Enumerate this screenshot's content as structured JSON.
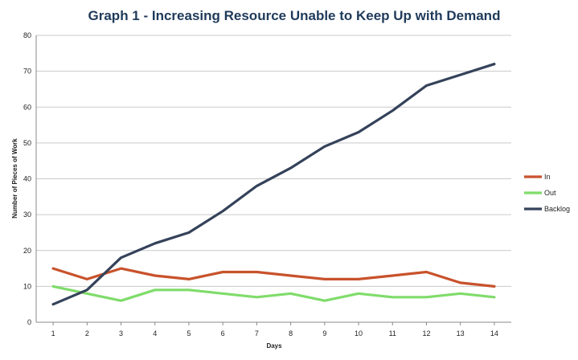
{
  "chart_data": {
    "type": "line",
    "title": "Graph 1 - Increasing Resource Unable to Keep Up with Demand",
    "xlabel": "Days",
    "ylabel": "Number of Pieces of Work",
    "x": [
      1,
      2,
      3,
      4,
      5,
      6,
      7,
      8,
      9,
      10,
      11,
      12,
      13,
      14
    ],
    "ylim": [
      0,
      80
    ],
    "yticks": [
      0,
      10,
      20,
      30,
      40,
      50,
      60,
      70,
      80
    ],
    "grid": "horizontal",
    "legend_position": "right",
    "series": [
      {
        "name": "In",
        "color": "#c8522c",
        "values": [
          15,
          12,
          15,
          13,
          12,
          14,
          14,
          13,
          12,
          12,
          13,
          14,
          11,
          10
        ]
      },
      {
        "name": "Out",
        "color": "#7fdc6a",
        "values": [
          10,
          8,
          6,
          9,
          9,
          8,
          7,
          8,
          6,
          8,
          7,
          7,
          8,
          7
        ]
      },
      {
        "name": "Backlog",
        "color": "#34425a",
        "values": [
          5,
          9,
          18,
          22,
          25,
          31,
          38,
          43,
          49,
          53,
          59,
          66,
          69,
          72
        ]
      }
    ]
  }
}
